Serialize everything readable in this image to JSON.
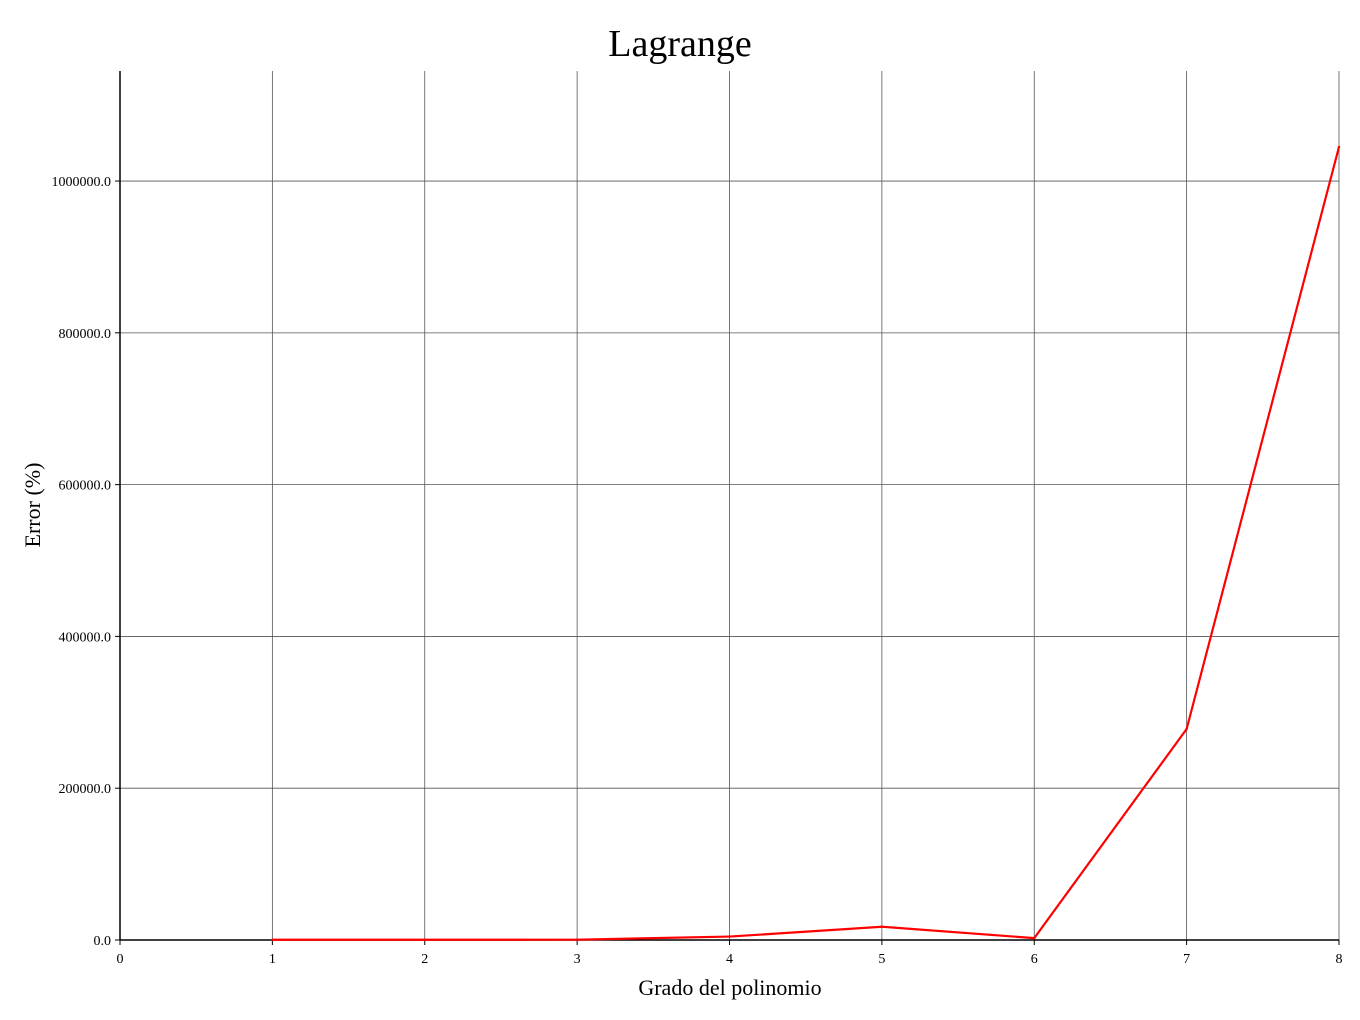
{
  "chart_data": {
    "type": "line",
    "title": "Lagrange",
    "xlabel": "Grado del polinomio",
    "ylabel": "Error (%)",
    "xlim": [
      0,
      8
    ],
    "ylim": [
      0,
      1145000
    ],
    "grid": true,
    "x_ticks": [
      0,
      1,
      2,
      3,
      4,
      5,
      6,
      7,
      8
    ],
    "x_tick_labels": [
      "0",
      "1",
      "2",
      "3",
      "4",
      "5",
      "6",
      "7",
      "8"
    ],
    "y_ticks": [
      0,
      200000,
      400000,
      600000,
      800000,
      1000000
    ],
    "y_tick_labels": [
      "0.0",
      "200000.0",
      "400000.0",
      "600000.0",
      "800000.0",
      "1000000.0"
    ],
    "series": [
      {
        "color": "#ff0000",
        "x": [
          1,
          2,
          3,
          4,
          5,
          6,
          7,
          8
        ],
        "y": [
          300,
          300,
          400,
          4500,
          17500,
          2500,
          278000,
          1045000
        ]
      }
    ]
  }
}
